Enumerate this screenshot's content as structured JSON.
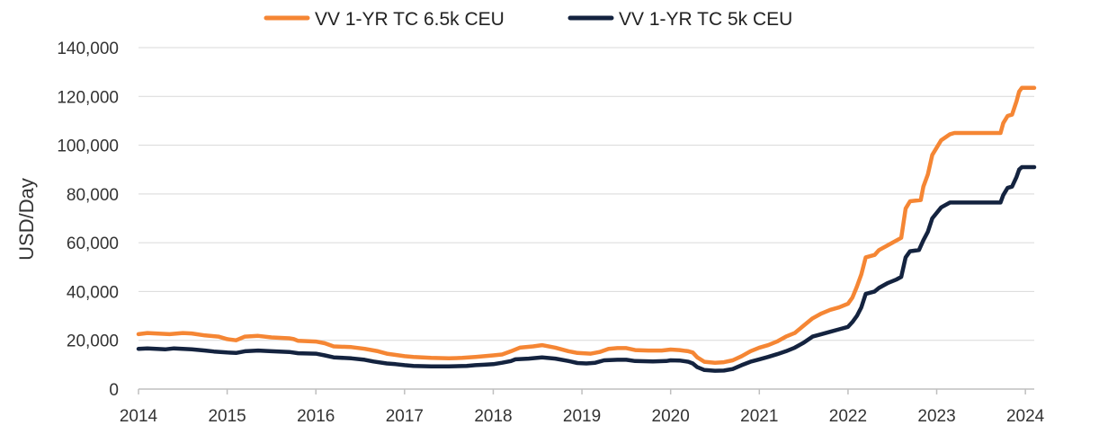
{
  "chart_data": {
    "type": "line",
    "title": "",
    "xlabel": "",
    "ylabel": "USD/Day",
    "xlim": [
      2014,
      2024.1
    ],
    "ylim": [
      0,
      140000
    ],
    "y_ticks": [
      0,
      20000,
      40000,
      60000,
      80000,
      100000,
      120000,
      140000
    ],
    "y_tick_labels": [
      "0",
      "20,000",
      "40,000",
      "60,000",
      "80,000",
      "100,000",
      "120,000",
      "140,000"
    ],
    "x_ticks": [
      2014,
      2015,
      2016,
      2017,
      2018,
      2019,
      2020,
      2021,
      2022,
      2023,
      2024
    ],
    "x_tick_labels": [
      "2014",
      "2015",
      "2016",
      "2017",
      "2018",
      "2019",
      "2020",
      "2021",
      "2022",
      "2023",
      "2024"
    ],
    "grid": "horizontal",
    "legend_position": "top",
    "series": [
      {
        "name": "VV 1-YR TC 6.5k CEU",
        "color": "#f58634",
        "points": [
          [
            2014.0,
            22500
          ],
          [
            2014.1,
            23000
          ],
          [
            2014.35,
            22500
          ],
          [
            2014.5,
            23000
          ],
          [
            2014.6,
            22800
          ],
          [
            2014.75,
            22000
          ],
          [
            2014.9,
            21500
          ],
          [
            2015.0,
            20500
          ],
          [
            2015.1,
            20000
          ],
          [
            2015.2,
            21500
          ],
          [
            2015.35,
            21800
          ],
          [
            2015.5,
            21200
          ],
          [
            2015.7,
            20800
          ],
          [
            2015.75,
            20500
          ],
          [
            2015.8,
            19800
          ],
          [
            2016.0,
            19500
          ],
          [
            2016.1,
            18800
          ],
          [
            2016.2,
            17500
          ],
          [
            2016.4,
            17200
          ],
          [
            2016.55,
            16500
          ],
          [
            2016.7,
            15500
          ],
          [
            2016.8,
            14500
          ],
          [
            2016.9,
            14000
          ],
          [
            2017.0,
            13500
          ],
          [
            2017.1,
            13200
          ],
          [
            2017.2,
            13000
          ],
          [
            2017.3,
            12800
          ],
          [
            2017.5,
            12600
          ],
          [
            2017.65,
            12800
          ],
          [
            2017.8,
            13200
          ],
          [
            2017.9,
            13500
          ],
          [
            2018.0,
            13800
          ],
          [
            2018.1,
            14200
          ],
          [
            2018.2,
            15500
          ],
          [
            2018.3,
            17000
          ],
          [
            2018.45,
            17500
          ],
          [
            2018.55,
            18000
          ],
          [
            2018.7,
            17000
          ],
          [
            2018.85,
            15500
          ],
          [
            2018.95,
            14800
          ],
          [
            2019.1,
            14500
          ],
          [
            2019.2,
            15200
          ],
          [
            2019.3,
            16500
          ],
          [
            2019.4,
            16800
          ],
          [
            2019.5,
            16800
          ],
          [
            2019.6,
            16000
          ],
          [
            2019.75,
            15800
          ],
          [
            2019.9,
            15800
          ],
          [
            2020.0,
            16200
          ],
          [
            2020.1,
            16000
          ],
          [
            2020.2,
            15500
          ],
          [
            2020.25,
            15000
          ],
          [
            2020.3,
            13000
          ],
          [
            2020.38,
            11200
          ],
          [
            2020.5,
            10800
          ],
          [
            2020.6,
            11000
          ],
          [
            2020.7,
            11800
          ],
          [
            2020.8,
            13500
          ],
          [
            2020.9,
            15500
          ],
          [
            2021.0,
            17000
          ],
          [
            2021.1,
            18000
          ],
          [
            2021.2,
            19500
          ],
          [
            2021.3,
            21500
          ],
          [
            2021.4,
            23000
          ],
          [
            2021.5,
            26000
          ],
          [
            2021.6,
            29000
          ],
          [
            2021.7,
            31000
          ],
          [
            2021.8,
            32500
          ],
          [
            2021.9,
            33500
          ],
          [
            2022.0,
            35000
          ],
          [
            2022.05,
            37500
          ],
          [
            2022.1,
            42000
          ],
          [
            2022.15,
            47000
          ],
          [
            2022.2,
            54000
          ],
          [
            2022.3,
            55000
          ],
          [
            2022.35,
            57000
          ],
          [
            2022.45,
            59000
          ],
          [
            2022.55,
            61000
          ],
          [
            2022.6,
            62000
          ],
          [
            2022.65,
            74000
          ],
          [
            2022.7,
            77000
          ],
          [
            2022.82,
            77500
          ],
          [
            2022.85,
            83000
          ],
          [
            2022.9,
            88000
          ],
          [
            2022.95,
            96000
          ],
          [
            2023.05,
            102000
          ],
          [
            2023.15,
            104500
          ],
          [
            2023.2,
            105000
          ],
          [
            2023.5,
            105000
          ],
          [
            2023.72,
            105000
          ],
          [
            2023.75,
            109000
          ],
          [
            2023.8,
            112000
          ],
          [
            2023.85,
            112500
          ],
          [
            2023.9,
            118000
          ],
          [
            2023.93,
            122000
          ],
          [
            2023.96,
            123500
          ],
          [
            2024.1,
            123500
          ]
        ]
      },
      {
        "name": "VV 1-YR TC 5k CEU",
        "color": "#14233f",
        "points": [
          [
            2014.0,
            16500
          ],
          [
            2014.1,
            16700
          ],
          [
            2014.3,
            16300
          ],
          [
            2014.4,
            16700
          ],
          [
            2014.6,
            16300
          ],
          [
            2014.75,
            15800
          ],
          [
            2014.85,
            15400
          ],
          [
            2015.0,
            15000
          ],
          [
            2015.1,
            14800
          ],
          [
            2015.2,
            15500
          ],
          [
            2015.35,
            15800
          ],
          [
            2015.5,
            15500
          ],
          [
            2015.7,
            15200
          ],
          [
            2015.8,
            14700
          ],
          [
            2016.0,
            14500
          ],
          [
            2016.1,
            13800
          ],
          [
            2016.2,
            13000
          ],
          [
            2016.4,
            12600
          ],
          [
            2016.55,
            12000
          ],
          [
            2016.65,
            11300
          ],
          [
            2016.8,
            10500
          ],
          [
            2016.9,
            10200
          ],
          [
            2017.0,
            9800
          ],
          [
            2017.1,
            9500
          ],
          [
            2017.3,
            9300
          ],
          [
            2017.5,
            9300
          ],
          [
            2017.7,
            9500
          ],
          [
            2017.8,
            9800
          ],
          [
            2017.9,
            10000
          ],
          [
            2018.0,
            10200
          ],
          [
            2018.1,
            10800
          ],
          [
            2018.2,
            11500
          ],
          [
            2018.25,
            12200
          ],
          [
            2018.4,
            12500
          ],
          [
            2018.55,
            13000
          ],
          [
            2018.7,
            12500
          ],
          [
            2018.85,
            11500
          ],
          [
            2018.95,
            10700
          ],
          [
            2019.05,
            10500
          ],
          [
            2019.15,
            10800
          ],
          [
            2019.25,
            11800
          ],
          [
            2019.4,
            12000
          ],
          [
            2019.5,
            12000
          ],
          [
            2019.6,
            11500
          ],
          [
            2019.8,
            11300
          ],
          [
            2019.95,
            11500
          ],
          [
            2020.0,
            11800
          ],
          [
            2020.1,
            11700
          ],
          [
            2020.2,
            11200
          ],
          [
            2020.25,
            10500
          ],
          [
            2020.3,
            9000
          ],
          [
            2020.38,
            7800
          ],
          [
            2020.5,
            7500
          ],
          [
            2020.6,
            7600
          ],
          [
            2020.7,
            8200
          ],
          [
            2020.8,
            9800
          ],
          [
            2020.9,
            11200
          ],
          [
            2021.0,
            12200
          ],
          [
            2021.1,
            13200
          ],
          [
            2021.2,
            14300
          ],
          [
            2021.3,
            15500
          ],
          [
            2021.4,
            17000
          ],
          [
            2021.5,
            19000
          ],
          [
            2021.6,
            21500
          ],
          [
            2021.7,
            22500
          ],
          [
            2021.8,
            23500
          ],
          [
            2021.9,
            24500
          ],
          [
            2022.0,
            25500
          ],
          [
            2022.05,
            27500
          ],
          [
            2022.1,
            30000
          ],
          [
            2022.15,
            33500
          ],
          [
            2022.2,
            39000
          ],
          [
            2022.3,
            40000
          ],
          [
            2022.35,
            41500
          ],
          [
            2022.45,
            43500
          ],
          [
            2022.55,
            45000
          ],
          [
            2022.6,
            46000
          ],
          [
            2022.65,
            54000
          ],
          [
            2022.7,
            56500
          ],
          [
            2022.8,
            57000
          ],
          [
            2022.85,
            61000
          ],
          [
            2022.9,
            64500
          ],
          [
            2022.95,
            70000
          ],
          [
            2023.05,
            74500
          ],
          [
            2023.15,
            76500
          ],
          [
            2023.2,
            76500
          ],
          [
            2023.5,
            76500
          ],
          [
            2023.72,
            76500
          ],
          [
            2023.75,
            79500
          ],
          [
            2023.8,
            82500
          ],
          [
            2023.85,
            83000
          ],
          [
            2023.9,
            87000
          ],
          [
            2023.93,
            90000
          ],
          [
            2023.96,
            91000
          ],
          [
            2024.1,
            91000
          ]
        ]
      }
    ]
  }
}
